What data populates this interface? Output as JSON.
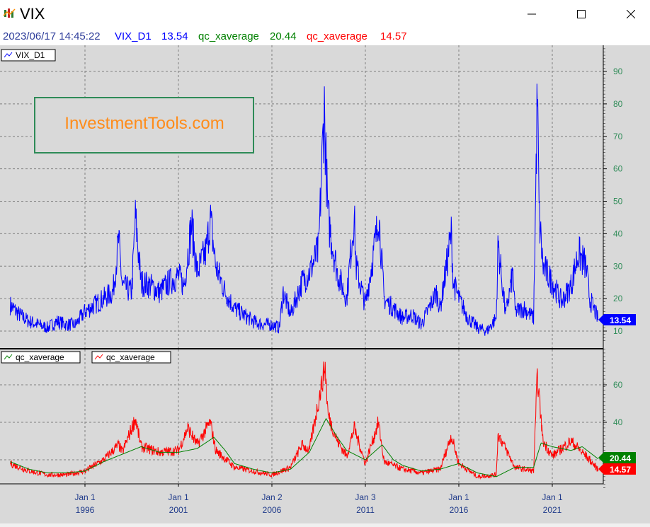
{
  "window": {
    "title": "VIX",
    "icon": "chart-app-icon",
    "buttons": [
      "minimize-icon",
      "maximize-icon",
      "close-icon"
    ]
  },
  "infobar": {
    "timestamp": "2023/06/17 14:45:22",
    "series1_name": "VIX_D1",
    "series1_value": "13.54",
    "series2_name": "qc_xaverage",
    "series2_value": "20.44",
    "series3_name": "qc_xaverage",
    "series3_value": "14.57"
  },
  "colors": {
    "vix": "#0000ff",
    "avg_green": "#008000",
    "avg_red": "#ff0000",
    "watermark_text": "#ff8c1a",
    "watermark_border": "#2e8b57",
    "chart_bg": "#d9d9d9",
    "grid": "#808080"
  },
  "watermark": "InvestmentTools.com",
  "chart_data": [
    {
      "type": "line",
      "panel": "upper",
      "legend": [
        "VIX_D1"
      ],
      "ylim": [
        7,
        97
      ],
      "yticks": [
        10,
        20,
        30,
        40,
        50,
        60,
        70,
        80,
        90
      ],
      "last_value_label": "13.54",
      "grid": true,
      "series": [
        {
          "name": "VIX_D1",
          "x": [
            1992.0,
            1992.5,
            1993.0,
            1993.5,
            1994.0,
            1994.5,
            1995.0,
            1995.5,
            1996.0,
            1996.5,
            1997.0,
            1997.5,
            1997.8,
            1998.0,
            1998.5,
            1998.7,
            1999.0,
            1999.5,
            2000.0,
            2000.5,
            2001.0,
            2001.3,
            2001.7,
            2002.0,
            2002.5,
            2002.7,
            2003.0,
            2003.5,
            2004.0,
            2004.5,
            2005.0,
            2005.5,
            2006.0,
            2006.4,
            2006.6,
            2007.0,
            2007.6,
            2008.0,
            2008.5,
            2008.8,
            2008.85,
            2009.0,
            2009.5,
            2010.0,
            2010.4,
            2010.5,
            2011.0,
            2011.6,
            2011.7,
            2012.0,
            2012.5,
            2013.0,
            2013.5,
            2014.0,
            2014.8,
            2015.0,
            2015.6,
            2015.7,
            2016.0,
            2016.5,
            2017.0,
            2017.5,
            2018.0,
            2018.1,
            2018.5,
            2018.9,
            2019.0,
            2019.5,
            2020.0,
            2020.2,
            2020.3,
            2020.5,
            2021.0,
            2021.5,
            2022.0,
            2022.4,
            2022.8,
            2023.0,
            2023.46
          ],
          "y": [
            18,
            15,
            13,
            12,
            11,
            13,
            12,
            12,
            16,
            18,
            20,
            22,
            38,
            24,
            22,
            45,
            25,
            24,
            22,
            25,
            27,
            24,
            43,
            28,
            35,
            45,
            30,
            22,
            17,
            15,
            13,
            12,
            12,
            11,
            22,
            15,
            25,
            28,
            35,
            80,
            70,
            45,
            28,
            20,
            46,
            30,
            18,
            40,
            48,
            20,
            17,
            14,
            15,
            12,
            22,
            17,
            40,
            25,
            20,
            14,
            11,
            10,
            14,
            37,
            15,
            28,
            16,
            17,
            14,
            83,
            45,
            30,
            25,
            19,
            24,
            34,
            30,
            20,
            13.54
          ]
        }
      ]
    },
    {
      "type": "line",
      "panel": "lower",
      "legend": [
        "qc_xaverage",
        "qc_xaverage"
      ],
      "ylim": [
        5,
        82
      ],
      "yticks": [
        20,
        40,
        60
      ],
      "last_value_labels": [
        "20.44",
        "14.57"
      ],
      "grid": true,
      "x_tick_labels": [
        {
          "top": "Jan 1",
          "bottom": "1996"
        },
        {
          "top": "Jan 1",
          "bottom": "2001"
        },
        {
          "top": "Jan 2",
          "bottom": "2006"
        },
        {
          "top": "Jan 3",
          "bottom": "2011"
        },
        {
          "top": "Jan 1",
          "bottom": "2016"
        },
        {
          "top": "Jan 1",
          "bottom": "2021"
        }
      ],
      "series": [
        {
          "name": "qc_xaverage",
          "color": "green",
          "x": [
            1992.0,
            1993.0,
            1994.0,
            1995.0,
            1996.0,
            1997.0,
            1998.0,
            1999.0,
            2000.0,
            2001.0,
            2002.0,
            2002.9,
            2003.5,
            2004.0,
            2005.0,
            2006.0,
            2007.0,
            2008.0,
            2008.9,
            2009.5,
            2010.0,
            2011.0,
            2011.9,
            2012.5,
            2013.0,
            2014.0,
            2015.0,
            2016.0,
            2017.0,
            2018.0,
            2019.0,
            2020.0,
            2020.4,
            2021.0,
            2022.0,
            2022.6,
            2023.46
          ],
          "y": [
            19,
            15,
            13,
            13,
            14,
            19,
            23,
            27,
            24,
            24,
            26,
            32,
            25,
            18,
            15,
            13,
            15,
            24,
            42,
            32,
            25,
            20,
            28,
            20,
            17,
            14,
            15,
            18,
            13,
            11,
            16,
            16,
            29,
            27,
            25,
            27,
            20.44
          ]
        },
        {
          "name": "qc_xaverage",
          "color": "red",
          "x": [
            1992.0,
            1993.0,
            1994.0,
            1995.0,
            1996.0,
            1997.0,
            1997.8,
            1998.0,
            1998.7,
            1999.0,
            2000.0,
            2001.0,
            2001.5,
            2002.0,
            2002.7,
            2003.0,
            2004.0,
            2005.0,
            2006.0,
            2007.0,
            2007.6,
            2008.0,
            2008.85,
            2009.0,
            2009.5,
            2010.0,
            2010.4,
            2011.0,
            2011.7,
            2012.0,
            2013.0,
            2014.0,
            2015.0,
            2015.6,
            2016.0,
            2017.0,
            2018.0,
            2018.1,
            2019.0,
            2020.0,
            2020.2,
            2020.5,
            2021.0,
            2022.0,
            2022.5,
            2023.0,
            2023.46
          ],
          "y": [
            18,
            14,
            12,
            12,
            14,
            20,
            28,
            24,
            42,
            27,
            24,
            25,
            37,
            28,
            40,
            25,
            16,
            14,
            12,
            16,
            28,
            25,
            70,
            44,
            30,
            22,
            37,
            18,
            40,
            19,
            15,
            13,
            15,
            33,
            18,
            11,
            12,
            34,
            16,
            14,
            65,
            30,
            22,
            30,
            25,
            20,
            14.57
          ]
        }
      ]
    }
  ]
}
